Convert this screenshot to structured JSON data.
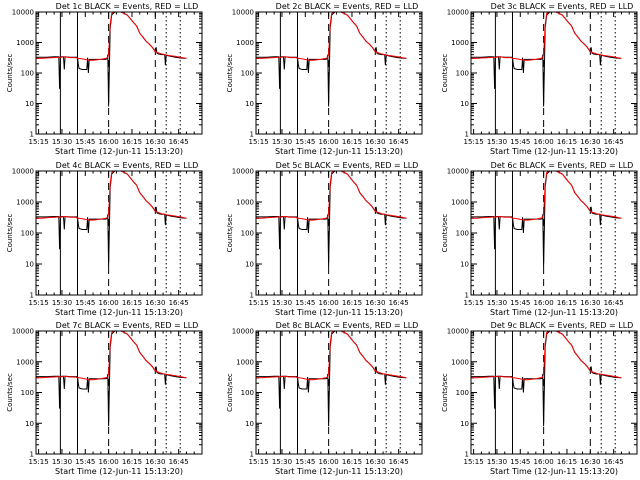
{
  "figure": {
    "layout": {
      "rows": 3,
      "cols": 3
    },
    "panels": [
      {
        "title": "Det 1c BLACK = Events, RED = LLD"
      },
      {
        "title": "Det 2c BLACK = Events, RED = LLD"
      },
      {
        "title": "Det 3c BLACK = Events, RED = LLD"
      },
      {
        "title": "Det 4c BLACK = Events, RED = LLD"
      },
      {
        "title": "Det 5c BLACK = Events, RED = LLD"
      },
      {
        "title": "Det 6c BLACK = Events, RED = LLD"
      },
      {
        "title": "Det 7c BLACK = Events, RED = LLD"
      },
      {
        "title": "Det 8c BLACK = Events, RED = LLD"
      },
      {
        "title": "Det 9c BLACK = Events, RED = LLD"
      }
    ]
  },
  "chart_data": {
    "type": "line",
    "xlabel": "Start Time (12-Jun-11 15:13:20)",
    "ylabel": "Counts/sec",
    "x_ticks": [
      "15:15",
      "15:30",
      "15:45",
      "16:00",
      "16:15",
      "16:30",
      "16:45"
    ],
    "x_tick_minutes": [
      15,
      30,
      45,
      60,
      75,
      90,
      105
    ],
    "xlim_minutes": [
      13.33,
      120
    ],
    "y_scale": "log",
    "ylim": [
      1,
      10000
    ],
    "y_ticks": [
      "1",
      "10",
      "100",
      "1000",
      "10000"
    ],
    "y_tick_values": [
      1,
      10,
      100,
      1000,
      10000
    ],
    "series": [
      {
        "name": "Events",
        "color": "#000000"
      },
      {
        "name": "LLD",
        "color": "#ff0000"
      }
    ],
    "x_minutes": [
      13.5,
      17,
      20,
      25,
      28,
      28.5,
      29,
      30,
      31,
      31.5,
      32,
      35,
      39,
      40,
      40.5,
      41,
      43,
      46,
      46.5,
      47,
      47.5,
      50,
      55,
      58,
      59,
      59.5,
      60,
      61,
      62,
      64,
      66,
      68,
      70,
      72,
      74,
      76,
      78,
      80,
      82,
      84,
      86,
      88,
      90,
      90.5,
      91,
      92,
      93,
      94,
      95,
      96,
      96.5,
      97,
      100,
      103,
      106,
      110
    ],
    "events": [
      330,
      330,
      330,
      340,
      340,
      30,
      330,
      340,
      340,
      130,
      340,
      330,
      330,
      330,
      190,
      140,
      130,
      130,
      320,
      100,
      280,
      280,
      280,
      280,
      290,
      400,
      8,
      3000,
      8000,
      10000,
      12000,
      10000,
      9000,
      8000,
      6000,
      4500,
      3500,
      2000,
      1500,
      1100,
      900,
      700,
      500,
      700,
      450,
      420,
      410,
      400,
      400,
      400,
      180,
      380,
      350,
      330,
      310,
      300
    ],
    "lld": [
      300,
      300,
      310,
      320,
      330,
      330,
      320,
      330,
      340,
      340,
      340,
      320,
      320,
      300,
      300,
      300,
      290,
      270,
      270,
      260,
      260,
      260,
      280,
      300,
      310,
      330,
      400,
      4000,
      9000,
      12000,
      15000,
      10000,
      9000,
      8000,
      6000,
      4500,
      3500,
      2000,
      1500,
      1100,
      900,
      700,
      500,
      500,
      470,
      460,
      440,
      420,
      410,
      400,
      400,
      390,
      370,
      350,
      330,
      300
    ],
    "vlines": [
      {
        "minute": 29,
        "style": "solid"
      },
      {
        "minute": 40,
        "style": "solid"
      },
      {
        "minute": 60,
        "style": "dashed"
      },
      {
        "minute": 90,
        "style": "dashed"
      },
      {
        "minute": 97,
        "style": "dotted"
      },
      {
        "minute": 106,
        "style": "dotted"
      }
    ]
  }
}
